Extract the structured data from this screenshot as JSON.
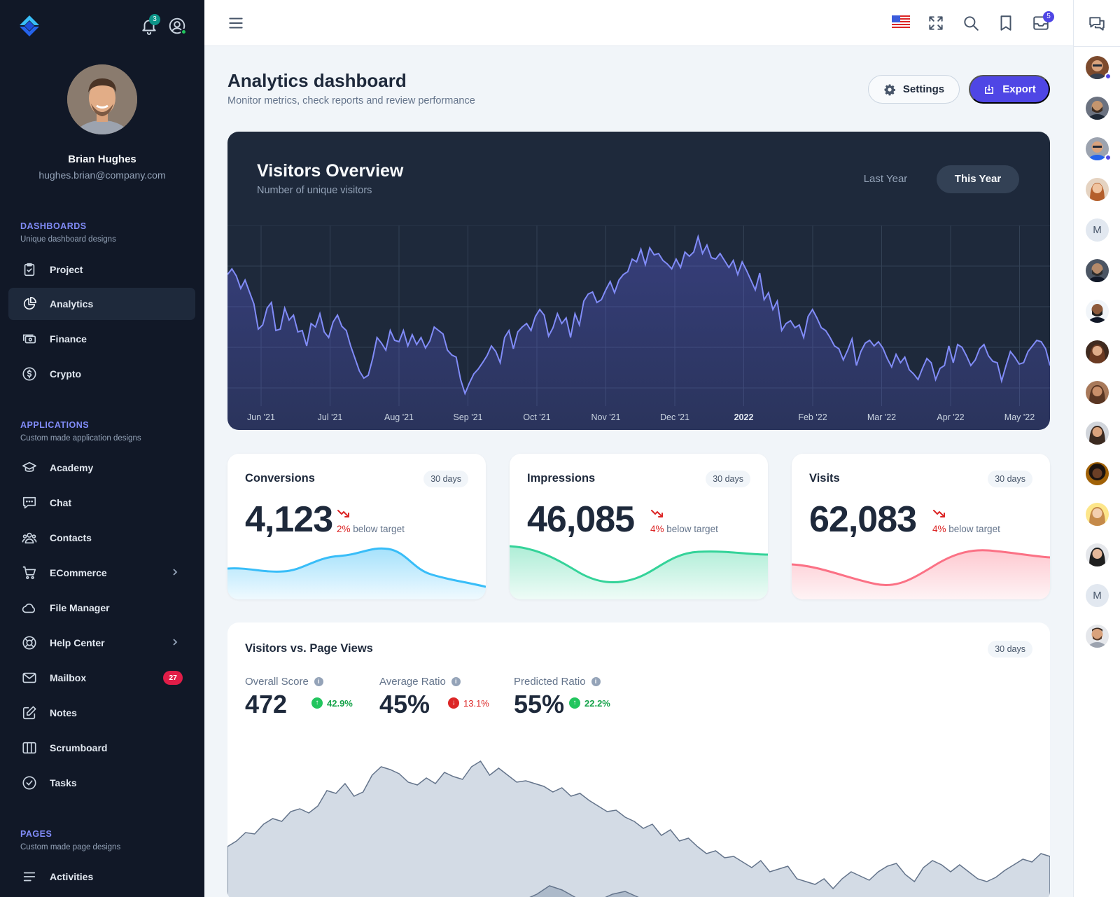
{
  "sidebar": {
    "user": {
      "name": "Brian Hughes",
      "email": "hughes.brian@company.com"
    },
    "notifications_count": "3",
    "sections": [
      {
        "title": "DASHBOARDS",
        "subtitle": "Unique dashboard designs"
      },
      {
        "title": "APPLICATIONS",
        "subtitle": "Custom made application designs"
      },
      {
        "title": "PAGES",
        "subtitle": "Custom made page designs"
      }
    ],
    "items": [
      {
        "label": "Project"
      },
      {
        "label": "Analytics"
      },
      {
        "label": "Finance"
      },
      {
        "label": "Crypto"
      },
      {
        "label": "Academy"
      },
      {
        "label": "Chat"
      },
      {
        "label": "Contacts"
      },
      {
        "label": "ECommerce"
      },
      {
        "label": "File Manager"
      },
      {
        "label": "Help Center"
      },
      {
        "label": "Mailbox",
        "badge": "27"
      },
      {
        "label": "Notes"
      },
      {
        "label": "Scrumboard"
      },
      {
        "label": "Tasks"
      },
      {
        "label": "Activities"
      }
    ]
  },
  "topbar": {
    "messages_count": "5"
  },
  "rail": {
    "initials": [
      "M",
      "M"
    ]
  },
  "header": {
    "title": "Analytics dashboard",
    "subtitle": "Monitor metrics, check reports and review performance",
    "settings_label": "Settings",
    "export_label": "Export"
  },
  "visitors": {
    "title": "Visitors Overview",
    "subtitle": "Number of unique visitors",
    "tab_last": "Last Year",
    "tab_this": "This Year",
    "x_labels": [
      "Jun '21",
      "Jul '21",
      "Aug '21",
      "Sep '21",
      "Oct '21",
      "Nov '21",
      "Dec '21",
      "2022",
      "Feb '22",
      "Mar '22",
      "Apr '22",
      "May '22"
    ]
  },
  "cards": [
    {
      "title": "Conversions",
      "period": "30 days",
      "value": "4,123",
      "pct": "2%",
      "note": "below target"
    },
    {
      "title": "Impressions",
      "period": "30 days",
      "value": "46,085",
      "pct": "4%",
      "note": "below target"
    },
    {
      "title": "Visits",
      "period": "30 days",
      "value": "62,083",
      "pct": "4%",
      "note": "below target"
    }
  ],
  "pageviews": {
    "title": "Visitors vs. Page Views",
    "period": "30 days",
    "metrics": [
      {
        "label": "Overall Score",
        "value": "472",
        "change": "42.9%",
        "direction": "up"
      },
      {
        "label": "Average Ratio",
        "value": "45%",
        "change": "13.1%",
        "direction": "down"
      },
      {
        "label": "Predicted Ratio",
        "value": "55%",
        "change": "22.2%",
        "direction": "up"
      }
    ]
  },
  "colors": {
    "accent": "#4f46e5",
    "sidebar_bg": "#111827",
    "chart_line": "#818cf8",
    "conversions": "#38bdf8",
    "impressions": "#34d399",
    "visits": "#fb7185",
    "up": "#22c55e",
    "down": "#dc2626"
  }
}
